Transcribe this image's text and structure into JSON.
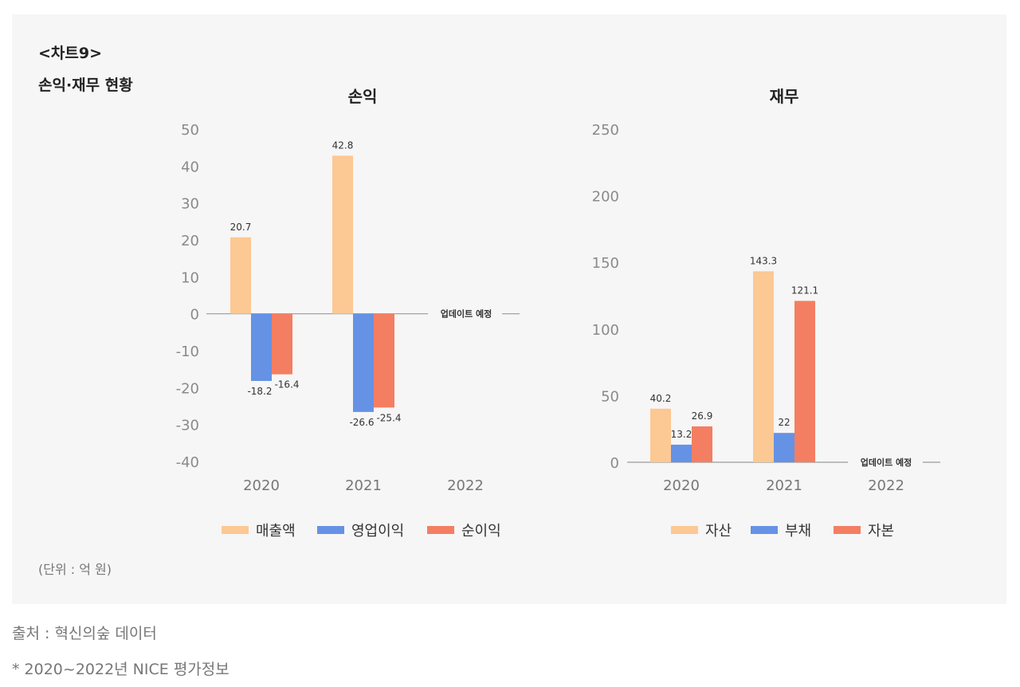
{
  "header": {
    "label": "<차트9>",
    "title": "손익·재무 현황"
  },
  "unit": "(단위 : 억 원)",
  "source": "출처 : 혁신의숲 데이터",
  "note": "* 2020~2022년 NICE 평가정보",
  "colors": {
    "series1": "#fcc893",
    "series2": "#6592e5",
    "series3": "#f47e62",
    "axis": "#999999"
  },
  "chart_data": [
    {
      "type": "bar",
      "title": "손익",
      "categories": [
        "2020",
        "2021",
        "2022"
      ],
      "ylim": [
        -40,
        50
      ],
      "yticks": [
        50,
        40,
        30,
        20,
        10,
        0,
        -10,
        -20,
        -30,
        -40
      ],
      "series": [
        {
          "name": "매출액",
          "values": [
            20.7,
            42.8,
            null
          ],
          "labels": [
            "20.7",
            "42.8",
            ""
          ]
        },
        {
          "name": "영업이익",
          "values": [
            -18.2,
            -26.6,
            null
          ],
          "labels": [
            "-18.2",
            "-26.6",
            ""
          ]
        },
        {
          "name": "순이익",
          "values": [
            -16.4,
            -25.4,
            null
          ],
          "labels": [
            "-16.4",
            "-25.4",
            ""
          ]
        }
      ],
      "pending_label": "업데이트 예정",
      "legend_position": "bottom"
    },
    {
      "type": "bar",
      "title": "재무",
      "categories": [
        "2020",
        "2021",
        "2022"
      ],
      "ylim": [
        0,
        250
      ],
      "yticks": [
        250,
        200,
        150,
        100,
        50,
        0
      ],
      "series": [
        {
          "name": "자산",
          "values": [
            40.2,
            143.3,
            null
          ],
          "labels": [
            "40.2",
            "143.3",
            ""
          ]
        },
        {
          "name": "부채",
          "values": [
            13.2,
            22,
            null
          ],
          "labels": [
            "13.2",
            "22",
            ""
          ]
        },
        {
          "name": "자본",
          "values": [
            26.9,
            121.1,
            null
          ],
          "labels": [
            "26.9",
            "121.1",
            ""
          ]
        }
      ],
      "pending_label": "업데이트 예정",
      "legend_position": "bottom"
    }
  ]
}
